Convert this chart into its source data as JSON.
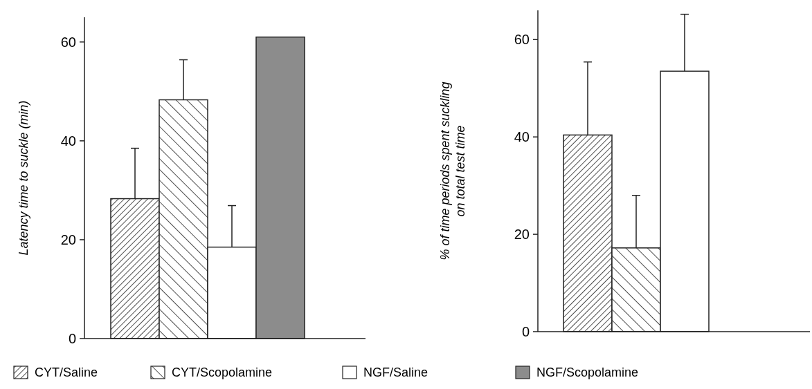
{
  "chart_data": [
    {
      "type": "bar",
      "ylabel": "Latency time to  suckle (min)",
      "categories": [
        null
      ],
      "ylim": [
        0,
        65
      ],
      "yticks": [
        0,
        20,
        40,
        60
      ],
      "legend": "bottom",
      "series": [
        {
          "name": "CYT/Saline",
          "color": "#222222",
          "values": [
            28.3
          ],
          "errors": [
            [
              28.3,
              38.5
            ]
          ]
        },
        {
          "name": "CYT/Scopolamine",
          "color": "#222222",
          "values": [
            48.3
          ],
          "errors": [
            [
              48.3,
              56.4
            ]
          ]
        },
        {
          "name": "NGF/Saline",
          "color": "#ffffff",
          "values": [
            18.5
          ],
          "errors": [
            [
              18.5,
              26.9
            ]
          ]
        },
        {
          "name": "NGF/Scopolamine",
          "color": "#8c8c8c",
          "values": [
            61.0
          ],
          "errors": [
            null
          ]
        }
      ]
    },
    {
      "type": "bar",
      "ylabel": "% of time periods spent suckling\non total test time",
      "categories": [
        null
      ],
      "ylim": [
        0,
        66
      ],
      "yticks": [
        0,
        20,
        40,
        60
      ],
      "legend": false,
      "series": [
        {
          "color": "#222222",
          "values": [
            40.4
          ],
          "errors": [
            [
              40.4,
              55.4
            ]
          ]
        },
        {
          "color": "#222222",
          "values": [
            17.2
          ],
          "errors": [
            [
              17.2,
              28.0
            ]
          ]
        },
        {
          "color": "#ffffff",
          "values": [
            53.5
          ],
          "errors": [
            [
              53.5,
              65.2
            ]
          ]
        },
        {
          "color": "#8c8c8c",
          "values": [
            null
          ],
          "errors": [
            null
          ]
        }
      ]
    }
  ]
}
